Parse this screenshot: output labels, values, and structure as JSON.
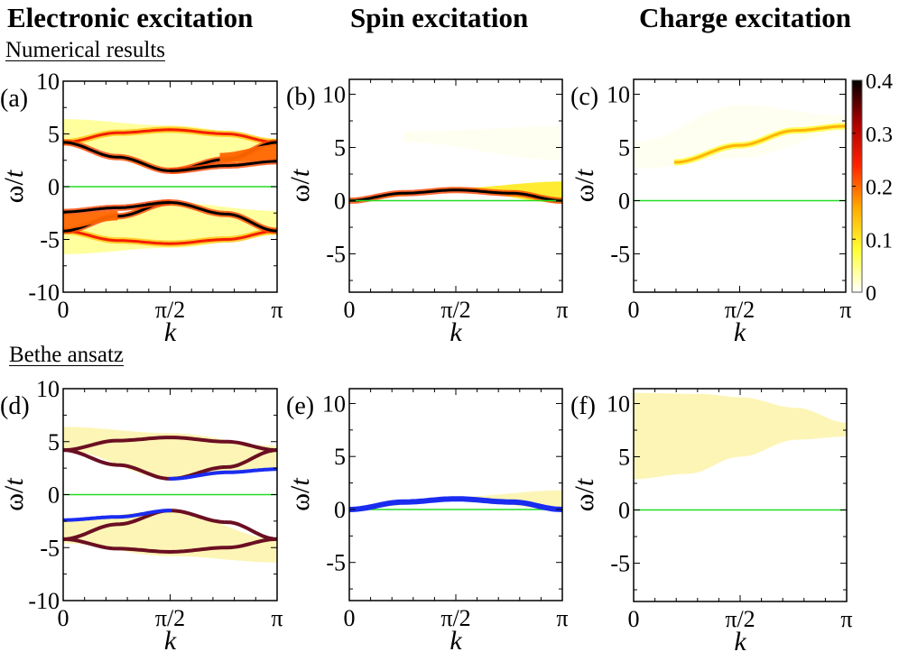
{
  "column_titles": [
    "Electronic excitation",
    "Spin excitation",
    "Charge excitation"
  ],
  "section_labels": [
    "Numerical results",
    "Bethe ansatz"
  ],
  "colors": {
    "zero_line": "#22dd22",
    "holon_boundary": "#6b0f22",
    "spinon_line": "#1a2cf0",
    "continuum_fill": "#fdf5b5",
    "colormap": [
      "#ffffff",
      "#ffff33",
      "#ffaa00",
      "#ff2200",
      "#aa0000",
      "#000000"
    ]
  },
  "chart_data": [
    {
      "id": "a",
      "panel_label": "(a)",
      "type": "heatmap",
      "group": "Numerical results",
      "title": "Electronic excitation",
      "xlabel": "k",
      "ylabel": "ω/t",
      "xlim": [
        0,
        3.14159
      ],
      "ylim": [
        -10,
        10
      ],
      "xticks": [
        {
          "v": 0,
          "label": "0"
        },
        {
          "v": 1.5708,
          "label": "π/2"
        },
        {
          "v": 3.14159,
          "label": "π"
        }
      ],
      "yticks": [
        {
          "v": 10,
          "label": "10"
        },
        {
          "v": 5,
          "label": "5"
        },
        {
          "v": 0,
          "label": "0"
        },
        {
          "v": -5,
          "label": "-5"
        },
        {
          "v": -10,
          "label": "-10"
        }
      ],
      "zero_line": true,
      "features": [
        {
          "kind": "band",
          "weight": 0.04,
          "upper": [
            [
              0,
              6.4
            ],
            [
              1.57,
              5.8
            ],
            [
              3.14,
              4.6
            ]
          ],
          "lower": [
            [
              0,
              4.2
            ],
            [
              1.57,
              1.5
            ],
            [
              3.14,
              2.3
            ]
          ]
        },
        {
          "kind": "curve",
          "weight": 0.25,
          "pts": [
            [
              0,
              4.2
            ],
            [
              0.8,
              5.1
            ],
            [
              1.57,
              5.4
            ],
            [
              2.4,
              5.0
            ],
            [
              3.14,
              4.2
            ]
          ]
        },
        {
          "kind": "curve",
          "weight": 0.4,
          "pts": [
            [
              0,
              4.2
            ],
            [
              0.8,
              2.8
            ],
            [
              1.57,
              1.5
            ],
            [
              2.4,
              2.6
            ],
            [
              3.14,
              4.2
            ]
          ]
        },
        {
          "kind": "curve",
          "weight": 0.4,
          "pts": [
            [
              1.57,
              1.5
            ],
            [
              2.4,
              2.0
            ],
            [
              3.14,
              2.4
            ]
          ]
        },
        {
          "kind": "band",
          "weight": 0.2,
          "upper": [
            [
              2.3,
              3.2
            ],
            [
              3.14,
              4.0
            ]
          ],
          "lower": [
            [
              2.3,
              2.3
            ],
            [
              3.14,
              2.6
            ]
          ]
        },
        {
          "kind": "band",
          "weight": 0.04,
          "upper": [
            [
              0,
              -4.2
            ],
            [
              1.57,
              -1.5
            ],
            [
              3.14,
              -2.3
            ]
          ],
          "lower": [
            [
              0,
              -6.4
            ],
            [
              1.57,
              -5.8
            ],
            [
              3.14,
              -4.6
            ]
          ]
        },
        {
          "kind": "curve",
          "weight": 0.25,
          "pts": [
            [
              0,
              -4.2
            ],
            [
              0.8,
              -5.1
            ],
            [
              1.57,
              -5.4
            ],
            [
              2.4,
              -5.0
            ],
            [
              3.14,
              -4.2
            ]
          ]
        },
        {
          "kind": "curve",
          "weight": 0.4,
          "pts": [
            [
              0,
              -4.2
            ],
            [
              0.8,
              -2.8
            ],
            [
              1.57,
              -1.5
            ],
            [
              2.4,
              -2.6
            ],
            [
              3.14,
              -4.2
            ]
          ]
        },
        {
          "kind": "curve",
          "weight": 0.4,
          "pts": [
            [
              0,
              -2.4
            ],
            [
              0.8,
              -2.0
            ],
            [
              1.57,
              -1.5
            ]
          ]
        },
        {
          "kind": "band",
          "weight": 0.2,
          "upper": [
            [
              0,
              -2.6
            ],
            [
              0.8,
              -2.3
            ]
          ],
          "lower": [
            [
              0,
              -4.0
            ],
            [
              0.8,
              -3.2
            ]
          ]
        }
      ]
    },
    {
      "id": "b",
      "panel_label": "(b)",
      "type": "heatmap",
      "group": "Numerical results",
      "title": "Spin excitation",
      "xlabel": "k",
      "ylabel": "ω/t",
      "xlim": [
        0,
        3.14159
      ],
      "ylim": [
        -8.6,
        11.4
      ],
      "xticks": [
        {
          "v": 0,
          "label": "0"
        },
        {
          "v": 1.5708,
          "label": "π/2"
        },
        {
          "v": 3.14159,
          "label": "π"
        }
      ],
      "yticks": [
        {
          "v": 10,
          "label": "10"
        },
        {
          "v": 5,
          "label": "5"
        },
        {
          "v": 0,
          "label": "0"
        },
        {
          "v": -5,
          "label": "-5"
        }
      ],
      "zero_line": true,
      "features": [
        {
          "kind": "band",
          "weight": 0.01,
          "upper": [
            [
              0.8,
              6.5
            ],
            [
              3.14,
              7.0
            ]
          ],
          "lower": [
            [
              0.8,
              5.5
            ],
            [
              3.14,
              3.8
            ]
          ]
        },
        {
          "kind": "band",
          "weight": 0.1,
          "upper": [
            [
              0,
              0
            ],
            [
              1.57,
              1.2
            ],
            [
              3.14,
              1.8
            ]
          ],
          "lower": [
            [
              0,
              0
            ],
            [
              1.57,
              0.9
            ],
            [
              3.14,
              -0.2
            ]
          ]
        },
        {
          "kind": "curve",
          "weight": 0.4,
          "pts": [
            [
              0,
              0
            ],
            [
              0.8,
              0.7
            ],
            [
              1.57,
              1.0
            ],
            [
              2.4,
              0.7
            ],
            [
              3.14,
              0.0
            ]
          ]
        }
      ]
    },
    {
      "id": "c",
      "panel_label": "(c)",
      "type": "heatmap",
      "group": "Numerical results",
      "title": "Charge excitation",
      "xlabel": "k",
      "ylabel": "ω/t",
      "xlim": [
        0,
        3.14159
      ],
      "ylim": [
        -8.6,
        11.4
      ],
      "xticks": [
        {
          "v": 0,
          "label": "0"
        },
        {
          "v": 1.5708,
          "label": "π/2"
        },
        {
          "v": 3.14159,
          "label": "π"
        }
      ],
      "yticks": [
        {
          "v": 10,
          "label": "10"
        },
        {
          "v": 5,
          "label": "5"
        },
        {
          "v": 0,
          "label": "0"
        },
        {
          "v": -5,
          "label": "-5"
        }
      ],
      "zero_line": true,
      "colorbar": {
        "min": 0,
        "max": 0.4,
        "ticks": [
          "0",
          "0.1",
          "0.2",
          "0.3",
          "0.4"
        ]
      },
      "features": [
        {
          "kind": "band",
          "weight": 0.01,
          "upper": [
            [
              0,
              5.5
            ],
            [
              1.57,
              9.0
            ],
            [
              3.14,
              8.0
            ]
          ],
          "lower": [
            [
              0,
              3.0
            ],
            [
              1.57,
              4.0
            ],
            [
              3.14,
              6.5
            ]
          ]
        },
        {
          "kind": "curve",
          "weight": 0.15,
          "pts": [
            [
              0.6,
              3.6
            ],
            [
              1.57,
              5.2
            ],
            [
              2.4,
              6.6
            ],
            [
              3.14,
              7.0
            ]
          ]
        }
      ]
    },
    {
      "id": "d",
      "panel_label": "(d)",
      "type": "area",
      "group": "Bethe ansatz",
      "title": "Electronic excitation",
      "xlabel": "k",
      "ylabel": "ω/t",
      "xlim": [
        0,
        3.14159
      ],
      "ylim": [
        -10,
        10
      ],
      "xticks": [
        {
          "v": 0,
          "label": "0"
        },
        {
          "v": 1.5708,
          "label": "π/2"
        },
        {
          "v": 3.14159,
          "label": "π"
        }
      ],
      "yticks": [
        {
          "v": 10,
          "label": "10"
        },
        {
          "v": 5,
          "label": "5"
        },
        {
          "v": 0,
          "label": "0"
        },
        {
          "v": -5,
          "label": "-5"
        },
        {
          "v": -10,
          "label": "-10"
        }
      ],
      "zero_line": true,
      "continua": [
        {
          "upper": [
            [
              0,
              6.4
            ],
            [
              1.57,
              5.8
            ],
            [
              3.14,
              4.6
            ]
          ],
          "lower": [
            [
              0,
              4.2
            ],
            [
              1.57,
              1.5
            ],
            [
              3.14,
              2.4
            ]
          ]
        },
        {
          "upper": [
            [
              0,
              -2.4
            ],
            [
              1.57,
              -1.5
            ],
            [
              3.14,
              -4.2
            ]
          ],
          "lower": [
            [
              0,
              -4.6
            ],
            [
              1.57,
              -5.8
            ],
            [
              3.14,
              -6.4
            ]
          ]
        }
      ],
      "series": [
        {
          "name": "holon-upper-1",
          "color": "holon",
          "pts": [
            [
              0,
              4.2
            ],
            [
              0.8,
              5.1
            ],
            [
              1.57,
              5.4
            ],
            [
              2.4,
              5.0
            ],
            [
              3.14,
              4.2
            ]
          ]
        },
        {
          "name": "holon-upper-2",
          "color": "holon",
          "pts": [
            [
              0,
              4.2
            ],
            [
              0.8,
              2.8
            ],
            [
              1.57,
              1.5
            ],
            [
              2.4,
              2.6
            ],
            [
              3.14,
              4.2
            ]
          ]
        },
        {
          "name": "spinon-upper",
          "color": "spinon",
          "pts": [
            [
              1.57,
              1.5
            ],
            [
              2.4,
              2.1
            ],
            [
              3.14,
              2.4
            ]
          ]
        },
        {
          "name": "holon-lower-1",
          "color": "holon",
          "pts": [
            [
              0,
              -4.2
            ],
            [
              0.8,
              -5.1
            ],
            [
              1.57,
              -5.4
            ],
            [
              2.4,
              -5.0
            ],
            [
              3.14,
              -4.2
            ]
          ]
        },
        {
          "name": "holon-lower-2",
          "color": "holon",
          "pts": [
            [
              0,
              -4.2
            ],
            [
              0.8,
              -2.8
            ],
            [
              1.57,
              -1.5
            ],
            [
              2.4,
              -2.6
            ],
            [
              3.14,
              -4.2
            ]
          ]
        },
        {
          "name": "spinon-lower",
          "color": "spinon",
          "pts": [
            [
              0,
              -2.4
            ],
            [
              0.8,
              -2.1
            ],
            [
              1.57,
              -1.5
            ]
          ]
        }
      ]
    },
    {
      "id": "e",
      "panel_label": "(e)",
      "type": "area",
      "group": "Bethe ansatz",
      "title": "Spin excitation",
      "xlabel": "k",
      "ylabel": "ω/t",
      "xlim": [
        0,
        3.14159
      ],
      "ylim": [
        -8.6,
        11.4
      ],
      "xticks": [
        {
          "v": 0,
          "label": "0"
        },
        {
          "v": 1.5708,
          "label": "π/2"
        },
        {
          "v": 3.14159,
          "label": "π"
        }
      ],
      "yticks": [
        {
          "v": 10,
          "label": "10"
        },
        {
          "v": 5,
          "label": "5"
        },
        {
          "v": 0,
          "label": "0"
        },
        {
          "v": -5,
          "label": "-5"
        }
      ],
      "zero_line": true,
      "continua": [
        {
          "upper": [
            [
              0,
              0
            ],
            [
              1.57,
              1.2
            ],
            [
              3.14,
              1.8
            ]
          ],
          "lower": [
            [
              0,
              0
            ],
            [
              1.57,
              0.9
            ],
            [
              3.14,
              0.0
            ]
          ]
        }
      ],
      "series": [
        {
          "name": "spinon-dispersion",
          "color": "spinon",
          "thick": true,
          "pts": [
            [
              0,
              0
            ],
            [
              0.8,
              0.7
            ],
            [
              1.57,
              1.0
            ],
            [
              2.4,
              0.7
            ],
            [
              3.14,
              0.0
            ]
          ]
        }
      ]
    },
    {
      "id": "f",
      "panel_label": "(f)",
      "type": "area",
      "group": "Bethe ansatz",
      "title": "Charge excitation",
      "xlabel": "k",
      "ylabel": "ω/t",
      "xlim": [
        0,
        3.14159
      ],
      "ylim": [
        -8.6,
        11.4
      ],
      "xticks": [
        {
          "v": 0,
          "label": "0"
        },
        {
          "v": 1.5708,
          "label": "π/2"
        },
        {
          "v": 3.14159,
          "label": "π"
        }
      ],
      "yticks": [
        {
          "v": 10,
          "label": "10"
        },
        {
          "v": 5,
          "label": "5"
        },
        {
          "v": 0,
          "label": "0"
        },
        {
          "v": -5,
          "label": "-5"
        }
      ],
      "zero_line": true,
      "continua": [
        {
          "upper": [
            [
              0,
              11.0
            ],
            [
              1.0,
              10.9
            ],
            [
              1.57,
              10.6
            ],
            [
              2.4,
              9.6
            ],
            [
              3.14,
              8.2
            ]
          ],
          "lower": [
            [
              0,
              2.9
            ],
            [
              0.8,
              3.4
            ],
            [
              1.57,
              5.0
            ],
            [
              2.4,
              6.6
            ],
            [
              3.14,
              6.9
            ]
          ]
        }
      ],
      "series": []
    }
  ]
}
